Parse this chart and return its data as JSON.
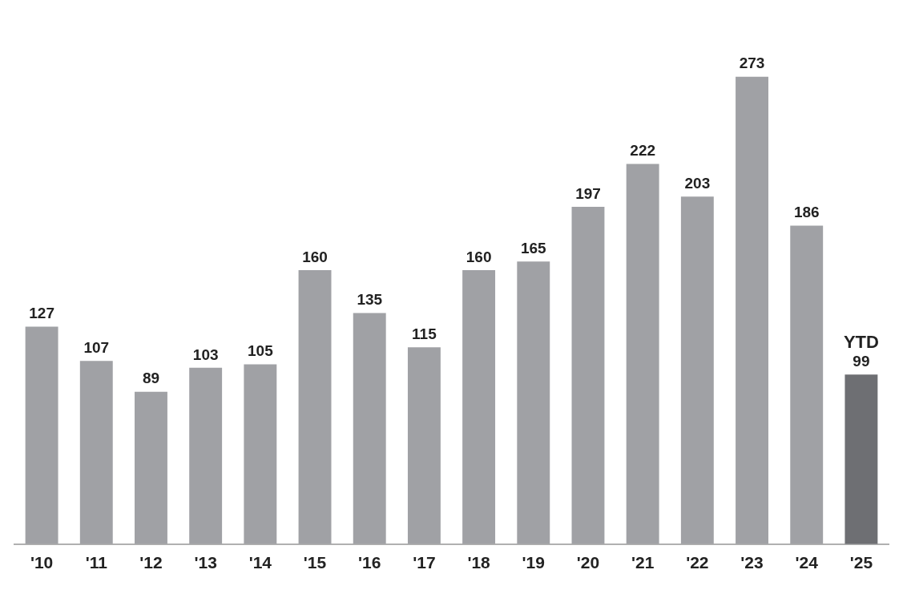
{
  "chart_data": {
    "type": "bar",
    "categories": [
      "'10",
      "'11",
      "'12",
      "'13",
      "'14",
      "'15",
      "'16",
      "'17",
      "'18",
      "'19",
      "'20",
      "'21",
      "'22",
      "'23",
      "'24",
      "'25"
    ],
    "values": [
      127,
      107,
      89,
      103,
      105,
      160,
      135,
      115,
      160,
      165,
      197,
      222,
      203,
      273,
      186,
      99
    ],
    "colors": [
      "#a0a1a5",
      "#a0a1a5",
      "#a0a1a5",
      "#a0a1a5",
      "#a0a1a5",
      "#a0a1a5",
      "#a0a1a5",
      "#a0a1a5",
      "#a0a1a5",
      "#a0a1a5",
      "#a0a1a5",
      "#a0a1a5",
      "#a0a1a5",
      "#a0a1a5",
      "#a0a1a5",
      "#6e6f73"
    ],
    "data_labels": true,
    "annotations": [
      {
        "text": "YTD",
        "x": "'25",
        "y": 99
      }
    ],
    "grid": false,
    "legend": false
  }
}
